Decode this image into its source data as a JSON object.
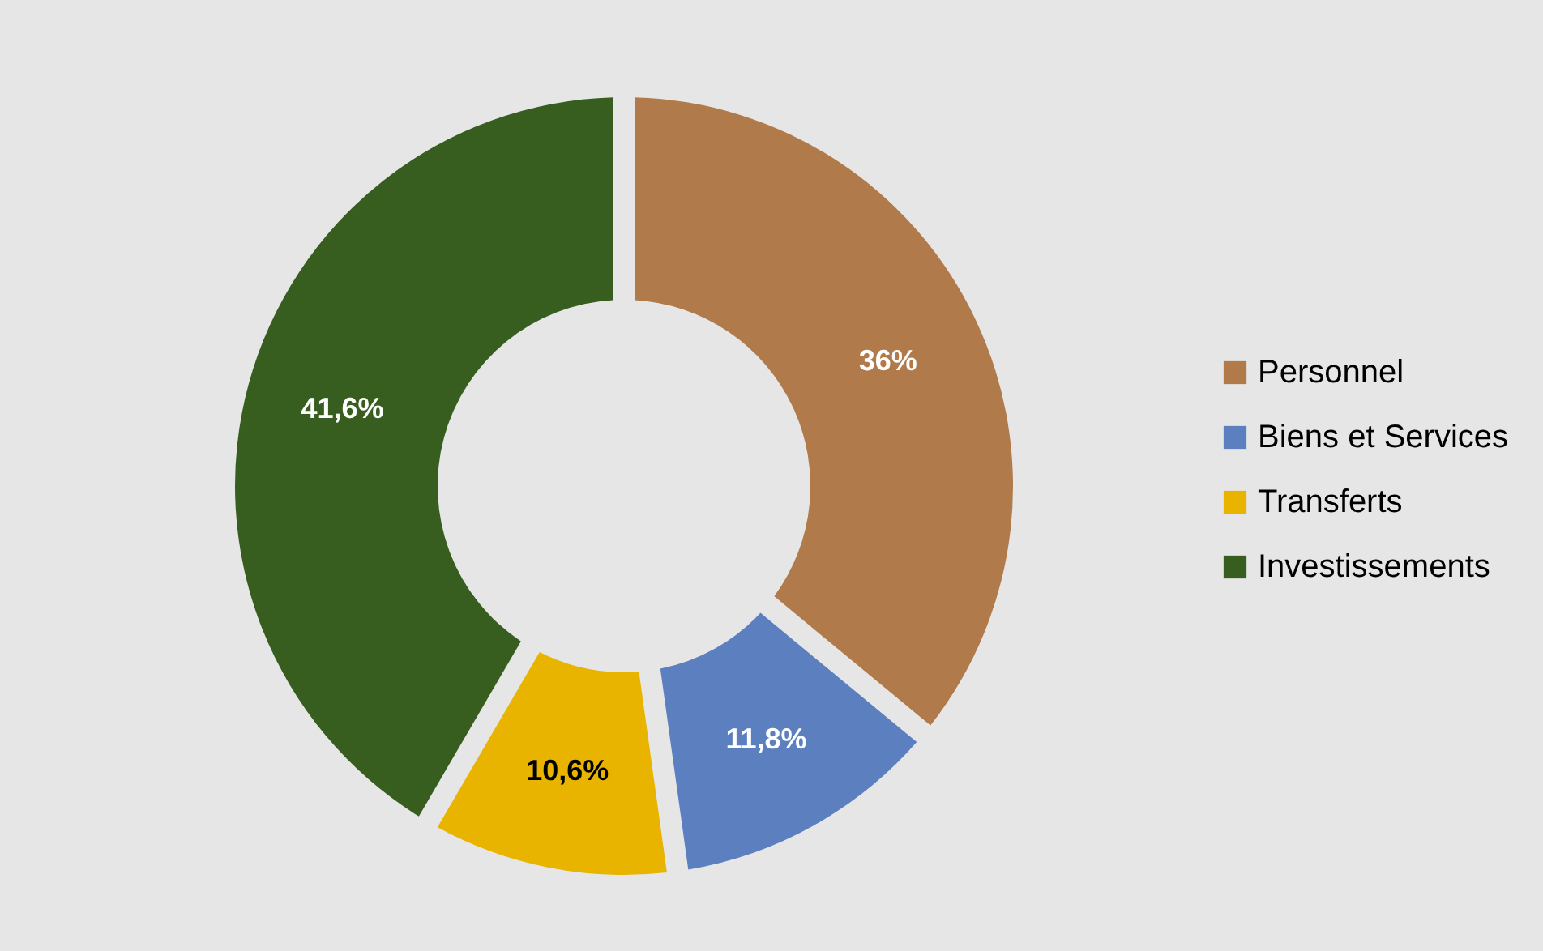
{
  "chart_data": {
    "type": "donut",
    "categories": [
      "Personnel",
      "Biens et Services",
      "Transferts",
      "Investissements"
    ],
    "values": [
      36,
      11.8,
      10.6,
      41.6
    ],
    "colors": [
      "#b07a4a",
      "#5b7fbf",
      "#e8b400",
      "#375e1f"
    ],
    "value_labels": [
      "36%",
      "11,8%",
      "10,6%",
      "41,6%"
    ],
    "legend": "right"
  }
}
